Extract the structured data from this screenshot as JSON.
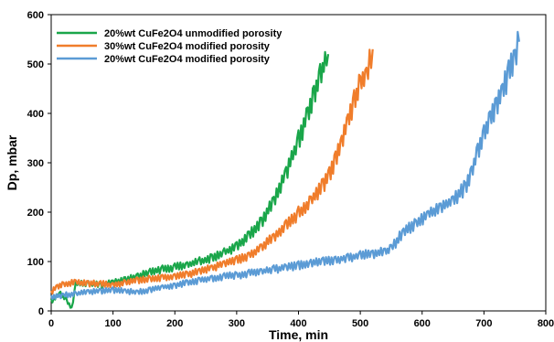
{
  "chart_data": {
    "type": "line",
    "title": "",
    "xlabel": "Time, min",
    "ylabel": "Dp, mbar",
    "xlim": [
      0,
      800
    ],
    "ylim": [
      0,
      600
    ],
    "x_ticks": [
      0,
      100,
      200,
      300,
      400,
      500,
      600,
      700,
      800
    ],
    "y_ticks": [
      0,
      100,
      200,
      300,
      400,
      500,
      600
    ],
    "x_tick_labels": [
      "0",
      "100",
      "200",
      "300",
      "400",
      "500",
      "600",
      "700",
      "800"
    ],
    "y_tick_labels": [
      "0",
      "100",
      "200",
      "300",
      "400",
      "500",
      "600"
    ],
    "grid": false,
    "legend_position": "top-left",
    "series": [
      {
        "name": "20%wt CuFe2O4 unmodified porosity",
        "color": "#1aa64a",
        "points": [
          [
            0,
            20
          ],
          [
            15,
            35
          ],
          [
            25,
            20
          ],
          [
            33,
            5
          ],
          [
            40,
            55
          ],
          [
            60,
            55
          ],
          [
            80,
            52
          ],
          [
            100,
            58
          ],
          [
            120,
            62
          ],
          [
            140,
            70
          ],
          [
            160,
            78
          ],
          [
            180,
            84
          ],
          [
            200,
            88
          ],
          [
            220,
            94
          ],
          [
            240,
            100
          ],
          [
            260,
            108
          ],
          [
            280,
            118
          ],
          [
            300,
            132
          ],
          [
            320,
            152
          ],
          [
            340,
            180
          ],
          [
            360,
            222
          ],
          [
            380,
            280
          ],
          [
            400,
            345
          ],
          [
            415,
            400
          ],
          [
            425,
            440
          ],
          [
            435,
            475
          ],
          [
            443,
            505
          ],
          [
            448,
            520
          ]
        ]
      },
      {
        "name": "30%wt CuFe2O4 modified porosity",
        "color": "#f07d2b",
        "points": [
          [
            0,
            38
          ],
          [
            10,
            50
          ],
          [
            20,
            54
          ],
          [
            40,
            58
          ],
          [
            60,
            56
          ],
          [
            80,
            55
          ],
          [
            100,
            52
          ],
          [
            120,
            58
          ],
          [
            140,
            62
          ],
          [
            160,
            65
          ],
          [
            180,
            68
          ],
          [
            200,
            70
          ],
          [
            220,
            74
          ],
          [
            240,
            80
          ],
          [
            260,
            88
          ],
          [
            280,
            95
          ],
          [
            300,
            103
          ],
          [
            320,
            112
          ],
          [
            340,
            128
          ],
          [
            360,
            150
          ],
          [
            380,
            172
          ],
          [
            400,
            198
          ],
          [
            420,
            222
          ],
          [
            440,
            255
          ],
          [
            450,
            275
          ],
          [
            460,
            305
          ],
          [
            470,
            345
          ],
          [
            480,
            385
          ],
          [
            490,
            425
          ],
          [
            500,
            460
          ],
          [
            510,
            480
          ],
          [
            515,
            505
          ],
          [
            520,
            530
          ]
        ]
      },
      {
        "name": "20%wt CuFe2O4 modified porosity",
        "color": "#5b9bd5",
        "points": [
          [
            0,
            28
          ],
          [
            20,
            32
          ],
          [
            40,
            35
          ],
          [
            60,
            38
          ],
          [
            80,
            40
          ],
          [
            100,
            42
          ],
          [
            120,
            40
          ],
          [
            140,
            38
          ],
          [
            160,
            42
          ],
          [
            180,
            48
          ],
          [
            200,
            52
          ],
          [
            220,
            57
          ],
          [
            240,
            62
          ],
          [
            260,
            66
          ],
          [
            280,
            70
          ],
          [
            300,
            72
          ],
          [
            320,
            76
          ],
          [
            340,
            80
          ],
          [
            360,
            84
          ],
          [
            380,
            88
          ],
          [
            400,
            92
          ],
          [
            420,
            96
          ],
          [
            440,
            100
          ],
          [
            460,
            104
          ],
          [
            480,
            108
          ],
          [
            500,
            112
          ],
          [
            520,
            116
          ],
          [
            540,
            120
          ],
          [
            550,
            125
          ],
          [
            555,
            135
          ],
          [
            570,
            160
          ],
          [
            590,
            178
          ],
          [
            610,
            195
          ],
          [
            630,
            210
          ],
          [
            650,
            225
          ],
          [
            670,
            250
          ],
          [
            680,
            280
          ],
          [
            690,
            320
          ],
          [
            700,
            355
          ],
          [
            710,
            385
          ],
          [
            720,
            415
          ],
          [
            730,
            445
          ],
          [
            740,
            480
          ],
          [
            750,
            515
          ],
          [
            757,
            545
          ]
        ]
      }
    ]
  }
}
